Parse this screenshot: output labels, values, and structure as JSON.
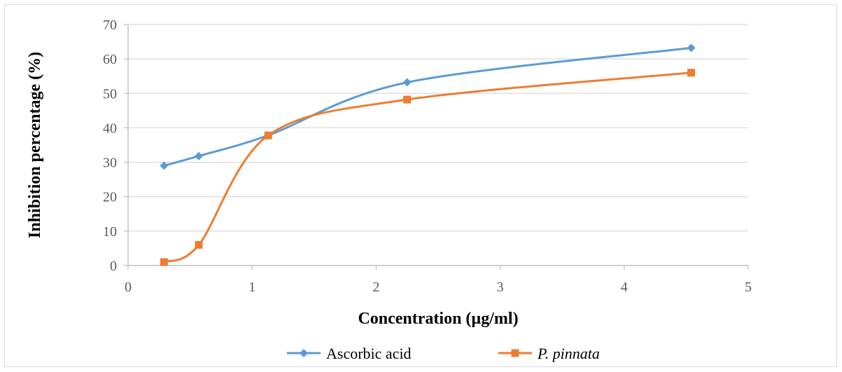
{
  "chart_data": {
    "type": "line",
    "smooth": true,
    "xlabel": "Concentration (µg/ml)",
    "ylabel": "Inhibition percentage (%)",
    "xlim": [
      0,
      5
    ],
    "ylim": [
      0,
      70
    ],
    "x_ticks": [
      "0",
      "1",
      "2",
      "3",
      "4",
      "5"
    ],
    "y_ticks": [
      "0",
      "10",
      "20",
      "30",
      "40",
      "50",
      "60",
      "70"
    ],
    "grid": "horizontal",
    "legend_position": "bottom",
    "series": [
      {
        "name": "Ascorbic acid",
        "color": "#5b9bd5",
        "marker": "diamond",
        "x": [
          0.29,
          0.57,
          1.13,
          2.25,
          4.54
        ],
        "y": [
          29.0,
          31.8,
          37.8,
          53.2,
          63.2
        ]
      },
      {
        "name": "P. pinnata",
        "color": "#ed7d31",
        "marker": "square",
        "italic": true,
        "x": [
          0.29,
          0.57,
          1.13,
          2.25,
          4.54
        ],
        "y": [
          1.0,
          6.0,
          37.8,
          48.2,
          56.0
        ]
      }
    ]
  }
}
